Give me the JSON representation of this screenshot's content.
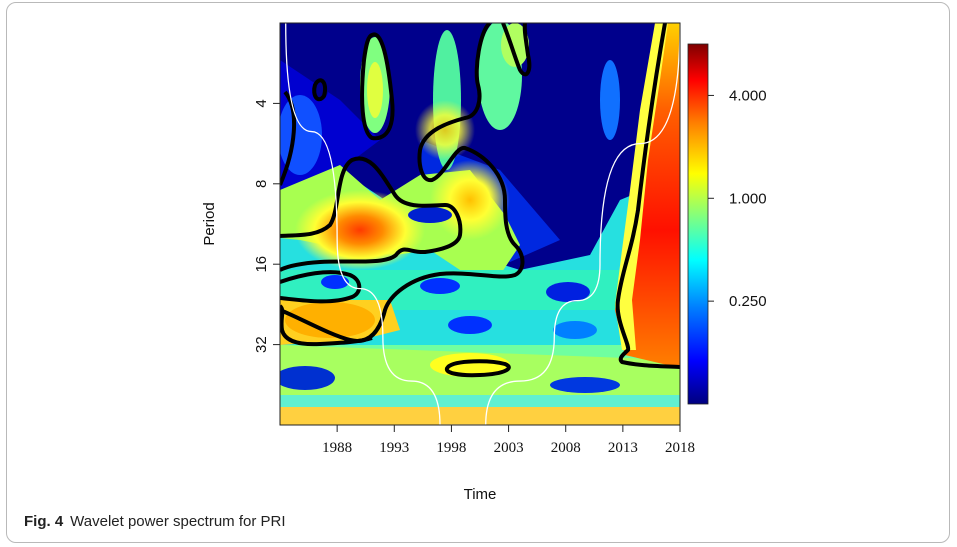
{
  "caption": {
    "label": "Fig. 4",
    "text": "Wavelet power spectrum for PRI"
  },
  "chart_data": {
    "type": "heatmap",
    "title": "",
    "xlabel": "Time",
    "ylabel": "Period",
    "xlim": [
      1983,
      2018
    ],
    "ylim_period": [
      2,
      64
    ],
    "y_scale": "log2",
    "x_ticks": [
      "1988",
      "1993",
      "1998",
      "2003",
      "2008",
      "2013",
      "2018"
    ],
    "y_ticks": [
      "4",
      "8",
      "16",
      "32"
    ],
    "colorbar": {
      "labels": [
        "4.000",
        "1.000",
        "0.250"
      ],
      "values": [
        4.0,
        1.0,
        0.25
      ],
      "scale": "log",
      "colors": [
        "#00007f",
        "#0000ff",
        "#0080ff",
        "#00ffff",
        "#80ff80",
        "#ffff00",
        "#ff8000",
        "#ff0000",
        "#7f0000"
      ]
    },
    "cone_of_influence": {
      "color": "#ffffff",
      "points": [
        [
          1983.5,
          2
        ],
        [
          1988,
          13
        ],
        [
          1992,
          30
        ],
        [
          1997,
          64
        ],
        [
          2001,
          64
        ],
        [
          2007,
          30
        ],
        [
          2011,
          16
        ],
        [
          2018,
          2
        ]
      ]
    },
    "significance_contour_color": "#000000"
  }
}
